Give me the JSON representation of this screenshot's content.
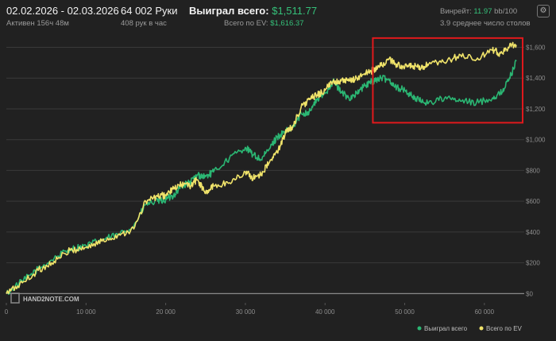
{
  "header": {
    "date_range": "02.02.2026 - 02.03.2026",
    "active": "Активен 156ч 48м",
    "hands": "64 002 Руки",
    "hands_per_hour": "408 рук в час",
    "won_label": "Выиграл всего:",
    "won_value": "$1,511.77",
    "ev_label": "Всего по EV:",
    "ev_value": "$1,616.37",
    "winrate_label": "Винрейт:",
    "winrate_value": "11.97",
    "winrate_rest": "bb/100",
    "tables": "3.9 среднее число столов",
    "settings_icon": "gear-icon"
  },
  "watermark": "HAND2NOTE.COM",
  "chart_data": {
    "type": "line",
    "x_ticks": [
      "0",
      "10 000",
      "20 000",
      "30 000",
      "40 000",
      "50 000",
      "60 000"
    ],
    "y_ticks": [
      "$0",
      "$200",
      "$400",
      "$600",
      "$800",
      "$1,000",
      "$1,200",
      "$1,400",
      "$1,600"
    ],
    "xlim": [
      0,
      65000
    ],
    "ylim": [
      -60,
      1680
    ],
    "grid": true,
    "legend_position": "bottom-right",
    "series": [
      {
        "name": "Выиграл всего",
        "color": "#2bb673",
        "points": [
          [
            0,
            0
          ],
          [
            2000,
            80
          ],
          [
            4000,
            160
          ],
          [
            6000,
            230
          ],
          [
            8000,
            290
          ],
          [
            10000,
            310
          ],
          [
            12000,
            350
          ],
          [
            14000,
            380
          ],
          [
            16000,
            440
          ],
          [
            17500,
            580
          ],
          [
            19000,
            600
          ],
          [
            20000,
            610
          ],
          [
            21000,
            640
          ],
          [
            22000,
            700
          ],
          [
            23000,
            720
          ],
          [
            24000,
            770
          ],
          [
            25000,
            760
          ],
          [
            26000,
            790
          ],
          [
            28000,
            880
          ],
          [
            30000,
            950
          ],
          [
            31000,
            900
          ],
          [
            32000,
            870
          ],
          [
            33000,
            940
          ],
          [
            34000,
            1020
          ],
          [
            35000,
            1050
          ],
          [
            36000,
            1080
          ],
          [
            37000,
            1170
          ],
          [
            38000,
            1180
          ],
          [
            39000,
            1260
          ],
          [
            40000,
            1300
          ],
          [
            41000,
            1380
          ],
          [
            42000,
            1310
          ],
          [
            43000,
            1270
          ],
          [
            44000,
            1300
          ],
          [
            45000,
            1350
          ],
          [
            46000,
            1380
          ],
          [
            47000,
            1400
          ],
          [
            48000,
            1390
          ],
          [
            49000,
            1340
          ],
          [
            50000,
            1320
          ],
          [
            51000,
            1280
          ],
          [
            52000,
            1250
          ],
          [
            53000,
            1240
          ],
          [
            55000,
            1270
          ],
          [
            57000,
            1250
          ],
          [
            59000,
            1240
          ],
          [
            61000,
            1270
          ],
          [
            62000,
            1300
          ],
          [
            63000,
            1380
          ],
          [
            64000,
            1510
          ]
        ]
      },
      {
        "name": "Всего по EV",
        "color": "#f0e36a",
        "points": [
          [
            0,
            0
          ],
          [
            2000,
            70
          ],
          [
            4000,
            150
          ],
          [
            6000,
            210
          ],
          [
            8000,
            280
          ],
          [
            10000,
            300
          ],
          [
            12000,
            340
          ],
          [
            14000,
            380
          ],
          [
            16000,
            420
          ],
          [
            17500,
            600
          ],
          [
            19000,
            630
          ],
          [
            20000,
            640
          ],
          [
            21000,
            680
          ],
          [
            22000,
            710
          ],
          [
            23000,
            700
          ],
          [
            24000,
            740
          ],
          [
            25000,
            650
          ],
          [
            26000,
            700
          ],
          [
            28000,
            720
          ],
          [
            30000,
            790
          ],
          [
            31000,
            750
          ],
          [
            32000,
            780
          ],
          [
            33000,
            850
          ],
          [
            34000,
            920
          ],
          [
            35000,
            1040
          ],
          [
            36000,
            1090
          ],
          [
            37000,
            1210
          ],
          [
            38000,
            1260
          ],
          [
            39000,
            1290
          ],
          [
            40000,
            1320
          ],
          [
            41000,
            1380
          ],
          [
            42000,
            1380
          ],
          [
            43000,
            1380
          ],
          [
            44000,
            1400
          ],
          [
            45000,
            1430
          ],
          [
            46000,
            1450
          ],
          [
            47000,
            1480
          ],
          [
            48000,
            1520
          ],
          [
            49000,
            1490
          ],
          [
            50000,
            1470
          ],
          [
            51000,
            1480
          ],
          [
            52000,
            1460
          ],
          [
            53000,
            1490
          ],
          [
            55000,
            1500
          ],
          [
            57000,
            1550
          ],
          [
            59000,
            1520
          ],
          [
            61000,
            1580
          ],
          [
            62000,
            1560
          ],
          [
            63000,
            1600
          ],
          [
            64000,
            1616
          ]
        ]
      }
    ],
    "highlight_box": {
      "x_from": 46000,
      "x_to": 64800,
      "y_from": 1110,
      "y_to": 1660,
      "color": "#e0191c"
    }
  }
}
